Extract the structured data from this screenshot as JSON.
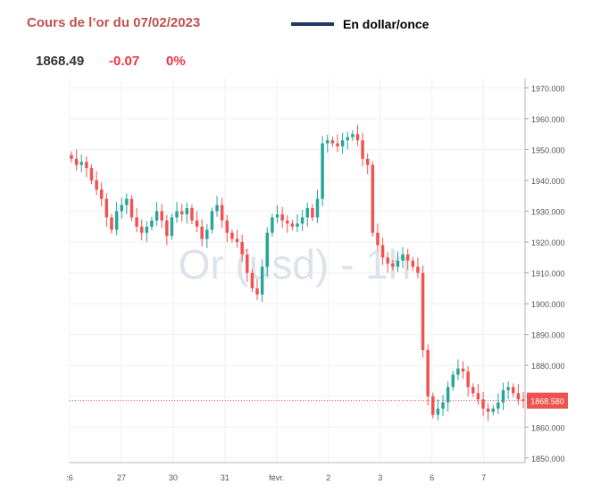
{
  "header": {
    "title": "Cours de l’or du 07/02/2023",
    "legend_label": "En dollar/once",
    "price": "1868.49",
    "change": "-0.07",
    "change_pct": "0%"
  },
  "watermark": "Or (usd) - 1h",
  "colors": {
    "up": "#26a69a",
    "down": "#ef5350",
    "legend_line": "#1f3864",
    "price_badge": "#ef5350"
  },
  "chart_data": {
    "type": "candlestick",
    "title": "Cours de l’or du 07/02/2023",
    "ylim": [
      1848.5,
      1973.0
    ],
    "yticks": [
      "1850.000",
      "1860.000",
      "1870.000",
      "1880.000",
      "1890.000",
      "1900.000",
      "1910.000",
      "1920.000",
      "1930.000",
      "1940.000",
      "1950.000",
      "1960.000",
      "1970.000"
    ],
    "xticks": [
      {
        "label": ":6",
        "pos": 0
      },
      {
        "label": "27",
        "pos": 10
      },
      {
        "label": "30",
        "pos": 20
      },
      {
        "label": "31",
        "pos": 30
      },
      {
        "label": "févr.",
        "pos": 40
      },
      {
        "label": "2",
        "pos": 50
      },
      {
        "label": "3",
        "pos": 60
      },
      {
        "label": "6",
        "pos": 70
      },
      {
        "label": "7",
        "pos": 80
      }
    ],
    "x_end": 88,
    "current_price": "1868.580",
    "current_price_value": 1868.58,
    "grid": true,
    "close": [
      1947,
      1945,
      1946,
      1944,
      1940,
      1937,
      1934,
      1928,
      1924,
      1930,
      1932,
      1934,
      1928,
      1925,
      1923,
      1925,
      1927,
      1930,
      1927,
      1922,
      1928,
      1930,
      1929,
      1931,
      1927,
      1925,
      1921,
      1924,
      1930,
      1932,
      1927,
      1923,
      1921,
      1920,
      1916,
      1910,
      1905,
      1903,
      1912,
      1923,
      1928,
      1929,
      1927,
      1926,
      1925,
      1926,
      1928,
      1931,
      1928,
      1934,
      1952,
      1953,
      1952,
      1951,
      1953,
      1954,
      1955,
      1953,
      1947,
      1945,
      1923,
      1919,
      1915,
      1913,
      1912,
      1914,
      1916,
      1914,
      1912,
      1910,
      1885,
      1870,
      1864,
      1866,
      1868,
      1873,
      1877,
      1879,
      1878,
      1873,
      1871,
      1869,
      1866,
      1865,
      1866,
      1868,
      1872,
      1873,
      1871,
      1869,
      1868.5
    ]
  }
}
